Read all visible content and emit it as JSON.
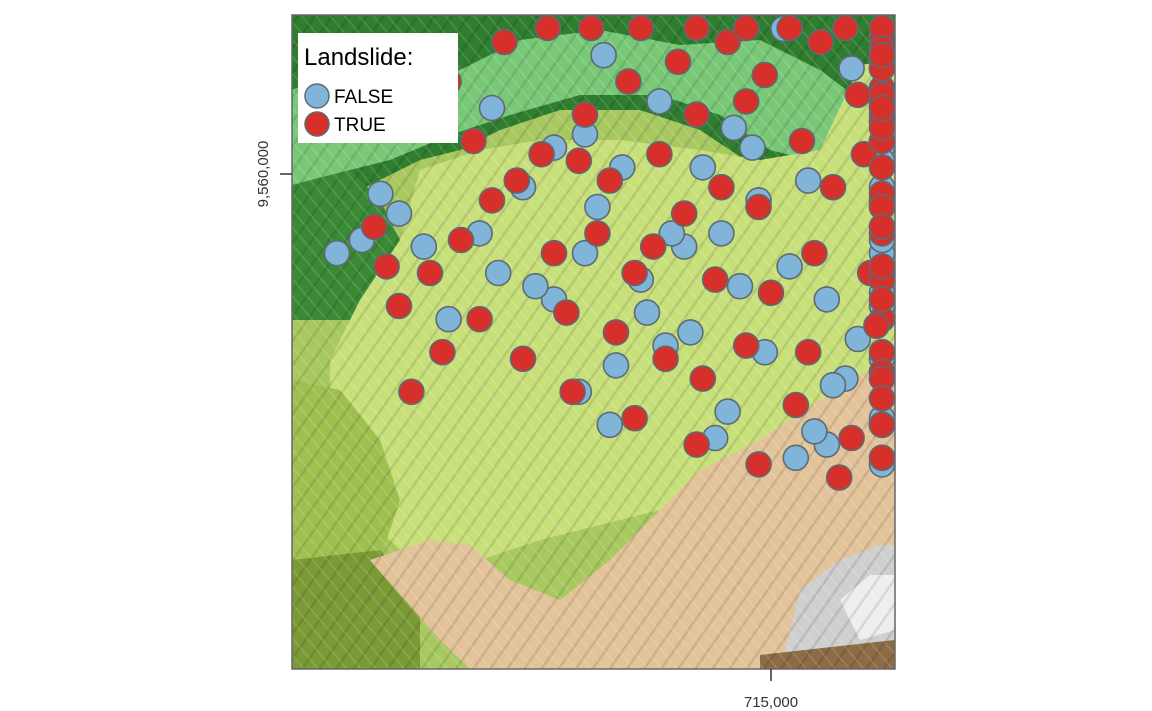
{
  "map": {
    "x_tick_label": "715,000",
    "y_tick_label": "9,560,000"
  },
  "legend": {
    "title": "Landslide:",
    "items": [
      {
        "label": "FALSE",
        "color": "#80b4d9"
      },
      {
        "label": "TRUE",
        "color": "#d7302a"
      }
    ]
  },
  "colors": {
    "point_outline": "#5d6b73",
    "dark_green": "#2f7d2f",
    "mid_green": "#78c878",
    "light_green": "#c8e07a",
    "olive_green": "#a8c860",
    "tan": "#e3c39a",
    "gray": "#c8c8c8",
    "frame": "#666666"
  },
  "chart_data": {
    "type": "scatter",
    "x_tick": 715000,
    "y_tick": 9560000,
    "series": [
      {
        "name": "FALSE",
        "color": "#80b4d9",
        "points": [
          [
            3,
            -14
          ],
          [
            51,
            -15
          ],
          [
            56,
            -12
          ],
          [
            -8,
            -9
          ],
          [
            23,
            -10
          ],
          [
            -14,
            -11
          ],
          [
            71,
            12
          ],
          [
            29,
            -16
          ],
          [
            -30,
            6
          ],
          [
            -18,
            11
          ],
          [
            -28,
            -5
          ],
          [
            -21,
            -16
          ],
          [
            35,
            4
          ],
          [
            -16,
            -9
          ],
          [
            -17,
            -26
          ],
          [
            12,
            -31
          ],
          [
            67,
            29
          ],
          [
            -44,
            -15
          ],
          [
            -45,
            10
          ],
          [
            -3,
            4
          ],
          [
            -6,
            7
          ],
          [
            -27,
            18
          ],
          [
            -24,
            1
          ],
          [
            -35,
            -19
          ],
          [
            2,
            22
          ],
          [
            25,
            23
          ],
          [
            14,
            -25
          ],
          [
            9,
            -41
          ],
          [
            58,
            17
          ],
          [
            57,
            -37
          ],
          [
            21,
            -38
          ],
          [
            7,
            -39
          ],
          [
            6,
            -1
          ],
          [
            -47,
            -9
          ],
          [
            -9,
            -40
          ],
          [
            -7,
            -36
          ],
          [
            33,
            22
          ],
          [
            -20,
            -21
          ],
          [
            -25,
            -29
          ],
          [
            10,
            -32
          ],
          [
            -38,
            -17
          ],
          [
            -52,
            -22
          ],
          [
            -56,
            -11
          ],
          [
            -60,
            -6
          ],
          [
            -63,
            -3
          ],
          [
            -66,
            -10
          ],
          [
            -70,
            -12
          ],
          [
            46,
            -20
          ],
          [
            43,
            -14
          ],
          [
            62,
            -28
          ],
          [
            -31,
            -33
          ],
          [
            -26,
            -38
          ],
          [
            4,
            -43
          ],
          [
            19,
            -43
          ],
          [
            41,
            -44
          ],
          [
            -13,
            -24
          ],
          [
            -5,
            -17
          ],
          [
            9,
            -19
          ],
          [
            -1,
            -27
          ],
          [
            39,
            5
          ],
          [
            42,
            9
          ],
          [
            13,
            16
          ],
          [
            18,
            11
          ],
          [
            -11,
            1
          ],
          [
            -2,
            -4
          ],
          [
            31,
            -8
          ],
          [
            37,
            -22
          ],
          [
            49,
            -4
          ],
          [
            53,
            2
          ],
          [
            65,
            -2
          ],
          [
            70,
            -18
          ],
          [
            60,
            13
          ],
          [
            47,
            21
          ],
          [
            -40,
            -2
          ],
          [
            -35,
            4
          ],
          [
            -30,
            -12
          ]
        ]
      },
      {
        "name": "TRUE",
        "color": "#d7302a",
        "points": [
          [
            -41,
            -1
          ],
          [
            -31,
            2
          ],
          [
            -12,
            9
          ],
          [
            -4,
            11
          ],
          [
            -2,
            -5
          ],
          [
            10,
            -2
          ],
          [
            15,
            3
          ],
          [
            22,
            8
          ],
          [
            30,
            1
          ],
          [
            -19,
            -11
          ],
          [
            -14,
            -6
          ],
          [
            -28,
            -9
          ],
          [
            -22,
            -15
          ],
          [
            -9,
            -16
          ],
          [
            0,
            -18
          ],
          [
            7,
            -12
          ],
          [
            16,
            -15
          ],
          [
            26,
            -5
          ],
          [
            -33,
            -21
          ],
          [
            -25,
            -24
          ],
          [
            -17,
            -28
          ],
          [
            -11,
            -31
          ],
          [
            -4,
            -26
          ],
          [
            4,
            -35
          ],
          [
            13,
            -40
          ],
          [
            24,
            -38
          ],
          [
            33,
            -30
          ],
          [
            41,
            -27
          ],
          [
            48,
            -16
          ],
          [
            55,
            -9
          ],
          [
            62,
            -3
          ],
          [
            66,
            5
          ],
          [
            58,
            11
          ],
          [
            51,
            16
          ],
          [
            44,
            21
          ],
          [
            36,
            18
          ],
          [
            29,
            13
          ],
          [
            20,
            16
          ],
          [
            8,
            20
          ],
          [
            -1,
            15
          ],
          [
            -7,
            20
          ],
          [
            -15,
            17
          ],
          [
            -23,
            14
          ],
          [
            -30,
            9
          ],
          [
            -37,
            3
          ],
          [
            -45,
            -4
          ],
          [
            -50,
            -10
          ],
          [
            -55,
            -15
          ],
          [
            -60,
            -20
          ],
          [
            -64,
            -8
          ],
          [
            -48,
            5
          ],
          [
            -52,
            14
          ],
          [
            -43,
            20
          ],
          [
            -36,
            25
          ],
          [
            -29,
            28
          ],
          [
            -21,
            30
          ],
          [
            -12,
            31
          ],
          [
            -4,
            30
          ],
          [
            3,
            27
          ],
          [
            12,
            29
          ],
          [
            19,
            25
          ],
          [
            27,
            27
          ],
          [
            38,
            29
          ],
          [
            47,
            28
          ],
          [
            56,
            24
          ],
          [
            63,
            19
          ],
          [
            69,
            10
          ],
          [
            72,
            -5
          ],
          [
            70,
            -22
          ],
          [
            65,
            -30
          ],
          [
            56,
            -31
          ],
          [
            44,
            -34
          ],
          [
            34,
            -38
          ],
          [
            23,
            -43
          ],
          [
            11,
            -46
          ],
          [
            -2,
            -44
          ],
          [
            -12,
            -41
          ],
          [
            -22,
            -37
          ],
          [
            -32,
            -33
          ],
          [
            -40,
            -28
          ],
          [
            -47,
            -22
          ],
          [
            -53,
            -27
          ],
          [
            -58,
            -33
          ],
          [
            -62,
            -14
          ],
          [
            -35,
            -12
          ],
          [
            -26,
            -1
          ],
          [
            -18,
            3
          ],
          [
            -8,
            -2
          ],
          [
            5,
            5
          ],
          [
            14,
            12
          ],
          [
            24,
            18
          ],
          [
            33,
            12
          ],
          [
            41,
            7
          ],
          [
            49,
            10
          ],
          [
            52,
            -22
          ],
          [
            45,
            -8
          ],
          [
            38,
            -14
          ],
          [
            28,
            -19
          ],
          [
            17,
            -23
          ],
          [
            6,
            -27
          ]
        ]
      }
    ]
  }
}
